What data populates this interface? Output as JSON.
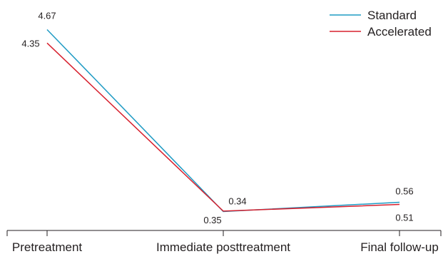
{
  "chart_data": {
    "type": "line",
    "title": "",
    "xlabel": "",
    "ylabel": "",
    "categories": [
      "Pretreatment",
      "Immediate posttreatment",
      "Final follow-up"
    ],
    "series": [
      {
        "name": "Standard",
        "color": "#1f9bc4",
        "values": [
          4.67,
          0.34,
          0.56
        ],
        "labels": [
          "4.67",
          "0.34",
          "0.56"
        ]
      },
      {
        "name": "Accelerated",
        "color": "#d7202e",
        "values": [
          4.35,
          0.35,
          0.51
        ],
        "labels": [
          "4.35",
          "0.35",
          "0.51"
        ]
      }
    ],
    "ylim": [
      0,
      4.67
    ],
    "grid": false,
    "legend": "top-right"
  }
}
